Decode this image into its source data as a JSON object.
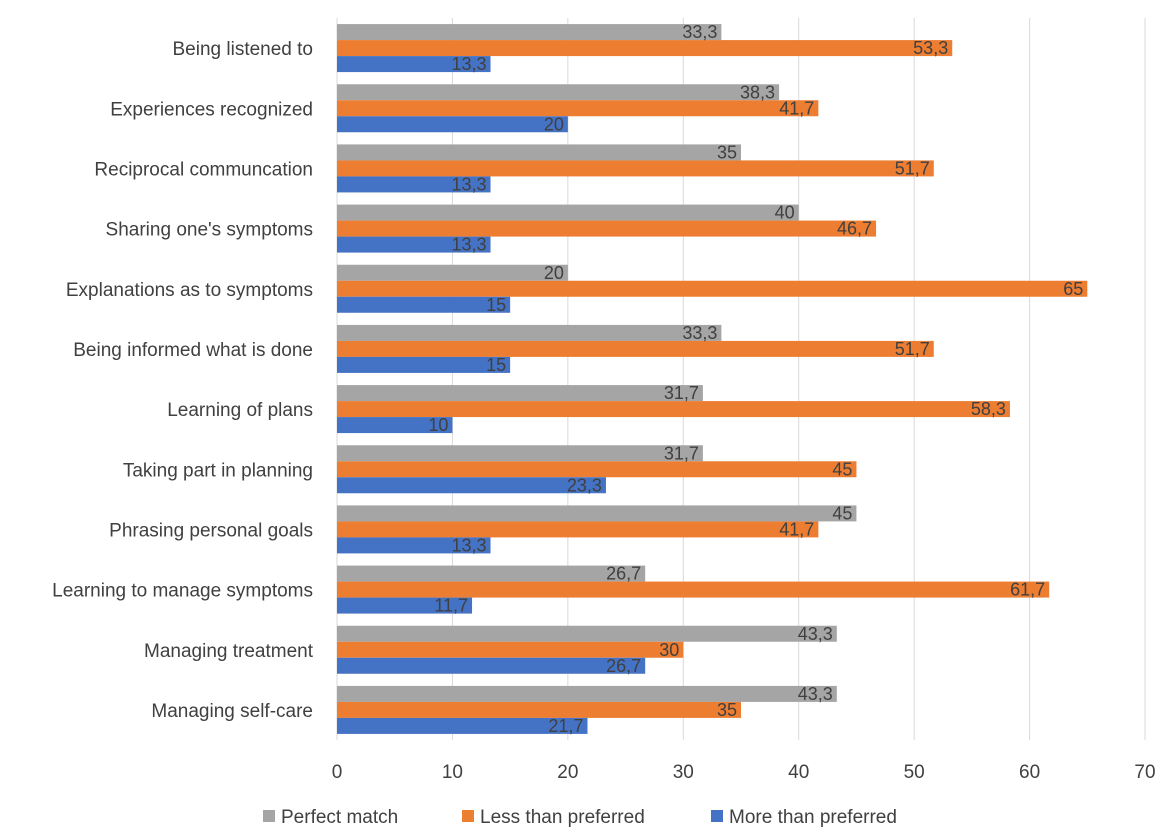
{
  "chart_data": {
    "type": "bar",
    "orientation": "horizontal",
    "categories": [
      "Being listened to",
      "Experiences recognized",
      "Reciprocal communcation",
      "Sharing one's symptoms",
      "Explanations as to symptoms",
      "Being informed what is done",
      "Learning of plans",
      "Taking part in planning",
      "Phrasing personal goals",
      "Learning to manage symptoms",
      "Managing treatment",
      "Managing self-care"
    ],
    "series": [
      {
        "name": "Perfect match",
        "color": "#a5a5a5",
        "values": [
          33.3,
          38.3,
          35,
          40,
          20,
          33.3,
          31.7,
          31.7,
          45,
          26.7,
          43.3,
          43.3
        ],
        "labels": [
          "33,3",
          "38,3",
          "35",
          "40",
          "20",
          "33,3",
          "31,7",
          "31,7",
          "45",
          "26,7",
          "43,3",
          "43,3"
        ]
      },
      {
        "name": "Less than preferred",
        "color": "#ed7d31",
        "values": [
          53.3,
          41.7,
          51.7,
          46.7,
          65,
          51.7,
          58.3,
          45,
          41.7,
          61.7,
          30,
          35
        ],
        "labels": [
          "53,3",
          "41,7",
          "51,7",
          "46,7",
          "65",
          "51,7",
          "58,3",
          "45",
          "41,7",
          "61,7",
          "30",
          "35"
        ]
      },
      {
        "name": "More than preferred",
        "color": "#4472c4",
        "values": [
          13.3,
          20,
          13.3,
          13.3,
          15,
          15,
          10,
          23.3,
          13.3,
          11.7,
          26.7,
          21.7
        ],
        "labels": [
          "13,3",
          "20",
          "13,3",
          "13,3",
          "15",
          "15",
          "10",
          "23,3",
          "13,3",
          "11,7",
          "26,7",
          "21,7"
        ]
      }
    ],
    "xlim": [
      0,
      70
    ],
    "xticks": [
      "0",
      "10",
      "20",
      "30",
      "40",
      "50",
      "60",
      "70"
    ],
    "title": "",
    "xlabel": "",
    "ylabel": "",
    "grid": "vertical",
    "legend_position": "bottom"
  }
}
